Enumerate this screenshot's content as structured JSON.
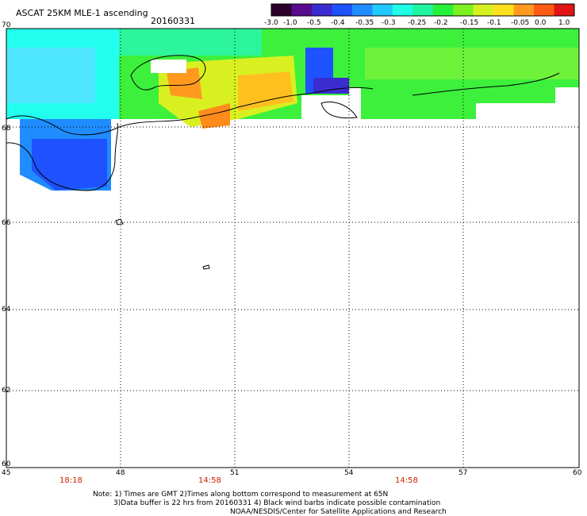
{
  "header": {
    "title": "ASCAT 25KM MLE-1 ascending",
    "date": "20160331"
  },
  "colorbar": {
    "labels": [
      "-3.0",
      "-1.0",
      "-0.5",
      "-0.4",
      "-0.35",
      "-0.3",
      "-0.25",
      "-0.2",
      "-0.15",
      "-0.1",
      "-0.05",
      "0.0",
      "1.0"
    ],
    "colors": [
      "#2a002a",
      "#5a0a8c",
      "#3b2ccf",
      "#1f52ff",
      "#1f8cff",
      "#1fc8ff",
      "#1fffe6",
      "#1ff5a0",
      "#25f03c",
      "#7df01f",
      "#d7f01f",
      "#ffe01f",
      "#ff9a1f",
      "#ff5a14",
      "#e01414"
    ]
  },
  "axes": {
    "lon_labels": [
      "45",
      "48",
      "51",
      "54",
      "57",
      "60"
    ],
    "lat_labels": [
      "70",
      "68",
      "66",
      "64",
      "62",
      "60"
    ],
    "lon_range": [
      45,
      60
    ],
    "lat_range": [
      60,
      70
    ]
  },
  "times": [
    "18:18",
    "14:58",
    "14:58"
  ],
  "notes": {
    "line1": "Note: 1) Times are GMT 2)Times along bottom correspond to measurement at 65N",
    "line2": "3)Data buffer is 22 hrs from 20160331 4) Black wind barbs indicate possible contamination",
    "line3": "NOAA/NESDIS/Center for Satellite Applications and Research"
  }
}
